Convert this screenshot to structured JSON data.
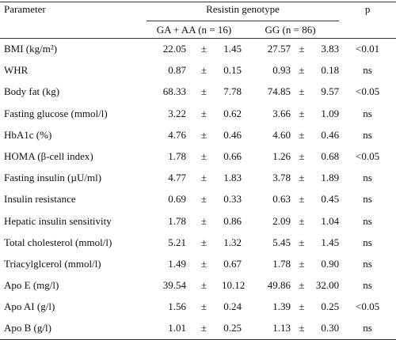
{
  "header": {
    "parameter": "Parameter",
    "genotype": "Resistin  genotype",
    "p": "p",
    "group1": "GA + AA (n = 16)",
    "group2": "GG (n = 86)"
  },
  "table": {
    "rows": [
      [
        "BMI (kg/m²)",
        "22.05",
        "±",
        "1.45",
        "27.57",
        "±",
        "3.83",
        "<0.01"
      ],
      [
        "WHR",
        "0.87",
        "±",
        "0.15",
        "0.93",
        "±",
        "0.18",
        "ns"
      ],
      [
        "Body fat (kg)",
        "68.33",
        "±",
        "7.78",
        "74.85",
        "±",
        "9.57",
        "<0.05"
      ],
      [
        "Fasting glucose (mmol/l)",
        "3.22",
        "±",
        "0.62",
        "3.66",
        "±",
        "1.09",
        "ns"
      ],
      [
        "HbA1c (%)",
        "4.76",
        "±",
        "0.46",
        "4.60",
        "±",
        "0.46",
        "ns"
      ],
      [
        "HOMA (β-cell index)",
        "1.78",
        "±",
        "0.66",
        "1.26",
        "±",
        "0.68",
        "<0.05"
      ],
      [
        "Fasting insulin (µU/ml)",
        "4.77",
        "±",
        "1.83",
        "3.78",
        "±",
        "1.89",
        "ns"
      ],
      [
        "Insulin resistance",
        "0.69",
        "±",
        "0.33",
        "0.63",
        "±",
        "0.45",
        "ns"
      ],
      [
        "Hepatic insulin sensitivity",
        "1.78",
        "±",
        "0.86",
        "2.09",
        "±",
        "1.04",
        "ns"
      ],
      [
        "Total cholesterol (mmol/l)",
        "5.21",
        "±",
        "1.32",
        "5.45",
        "±",
        "1.45",
        "ns"
      ],
      [
        "Triacylglcerol (mmol/l)",
        "1.49",
        "±",
        "0.67",
        "1.78",
        "±",
        "0.90",
        "ns"
      ],
      [
        "Apo E (mg/l)",
        "39.54",
        "±",
        "10.12",
        "49.86",
        "±",
        "32.00",
        "ns"
      ],
      [
        "Apo AI (g/l)",
        "1.56",
        "±",
        "0.24",
        "1.39",
        "±",
        "0.25",
        "<0.05"
      ],
      [
        "Apo B (g/l)",
        "1.01",
        "±",
        "0.25",
        "1.13",
        "±",
        "0.30",
        "ns"
      ]
    ]
  }
}
